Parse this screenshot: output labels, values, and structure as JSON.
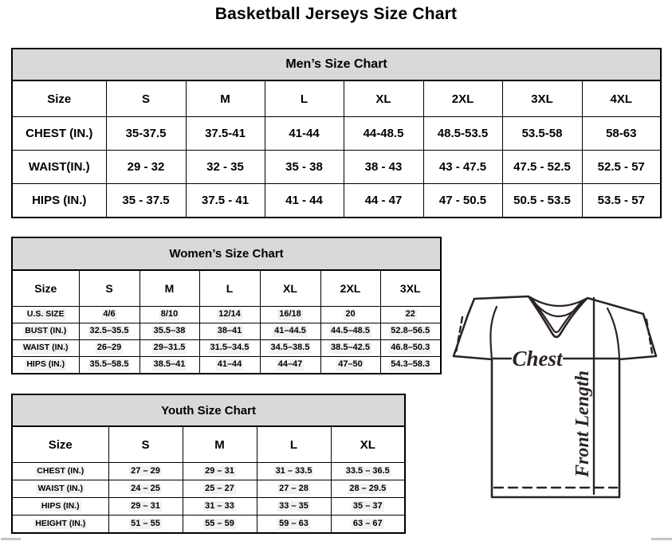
{
  "page_title": "Basketball Jerseys Size Chart",
  "tables": {
    "men": {
      "title": "Men’s Size Chart",
      "columns": [
        "Size",
        "S",
        "M",
        "L",
        "XL",
        "2XL",
        "3XL",
        "4XL"
      ],
      "rows": [
        {
          "label": "CHEST (IN.)",
          "values": [
            "35-37.5",
            "37.5-41",
            "41-44",
            "44-48.5",
            "48.5-53.5",
            "53.5-58",
            "58-63"
          ]
        },
        {
          "label": "WAIST(IN.)",
          "values": [
            "29 - 32",
            "32 - 35",
            "35 - 38",
            "38 - 43",
            "43 - 47.5",
            "47.5 - 52.5",
            "52.5 - 57"
          ]
        },
        {
          "label": "HIPS (IN.)",
          "values": [
            "35 - 37.5",
            "37.5 - 41",
            "41 - 44",
            "44 - 47",
            "47 - 50.5",
            "50.5 - 53.5",
            "53.5 - 57"
          ]
        }
      ]
    },
    "women": {
      "title": "Women’s Size Chart",
      "columns": [
        "Size",
        "S",
        "M",
        "L",
        "XL",
        "2XL",
        "3XL"
      ],
      "rows": [
        {
          "label": "U.S. SIZE",
          "values": [
            "4/6",
            "8/10",
            "12/14",
            "16/18",
            "20",
            "22"
          ]
        },
        {
          "label": "BUST (IN.)",
          "values": [
            "32.5–35.5",
            "35.5–38",
            "38–41",
            "41–44.5",
            "44.5–48.5",
            "52.8–56.5"
          ]
        },
        {
          "label": "WAIST (IN.)",
          "values": [
            "26–29",
            "29–31.5",
            "31.5–34.5",
            "34.5–38.5",
            "38.5–42.5",
            "46.8–50.3"
          ]
        },
        {
          "label": "HIPS (IN.)",
          "values": [
            "35.5–58.5",
            "38.5–41",
            "41–44",
            "44–47",
            "47–50",
            "54.3–58.3"
          ]
        }
      ]
    },
    "youth": {
      "title": "Youth Size Chart",
      "columns": [
        "Size",
        "S",
        "M",
        "L",
        "XL"
      ],
      "rows": [
        {
          "label": "CHEST (IN.)",
          "values": [
            "27 – 29",
            "29 – 31",
            "31 – 33.5",
            "33.5 – 36.5"
          ]
        },
        {
          "label": "WAIST (IN.)",
          "values": [
            "24 – 25",
            "25 – 27",
            "27 – 28",
            "28 – 29.5"
          ]
        },
        {
          "label": "HIPS (IN.)",
          "values": [
            "29 – 31",
            "31 – 33",
            "33 – 35",
            "35 – 37"
          ]
        },
        {
          "label": "HEIGHT (IN.)",
          "values": [
            "51 – 55",
            "55 – 59",
            "59 – 63",
            "63 – 67"
          ]
        }
      ]
    }
  },
  "diagram": {
    "chest_label": "Chest",
    "front_length_label": "Front Length"
  },
  "colors": {
    "table_header_bg": "#d9d9d9",
    "table_border": "#000000",
    "diagram_stroke": "#2b2422"
  }
}
